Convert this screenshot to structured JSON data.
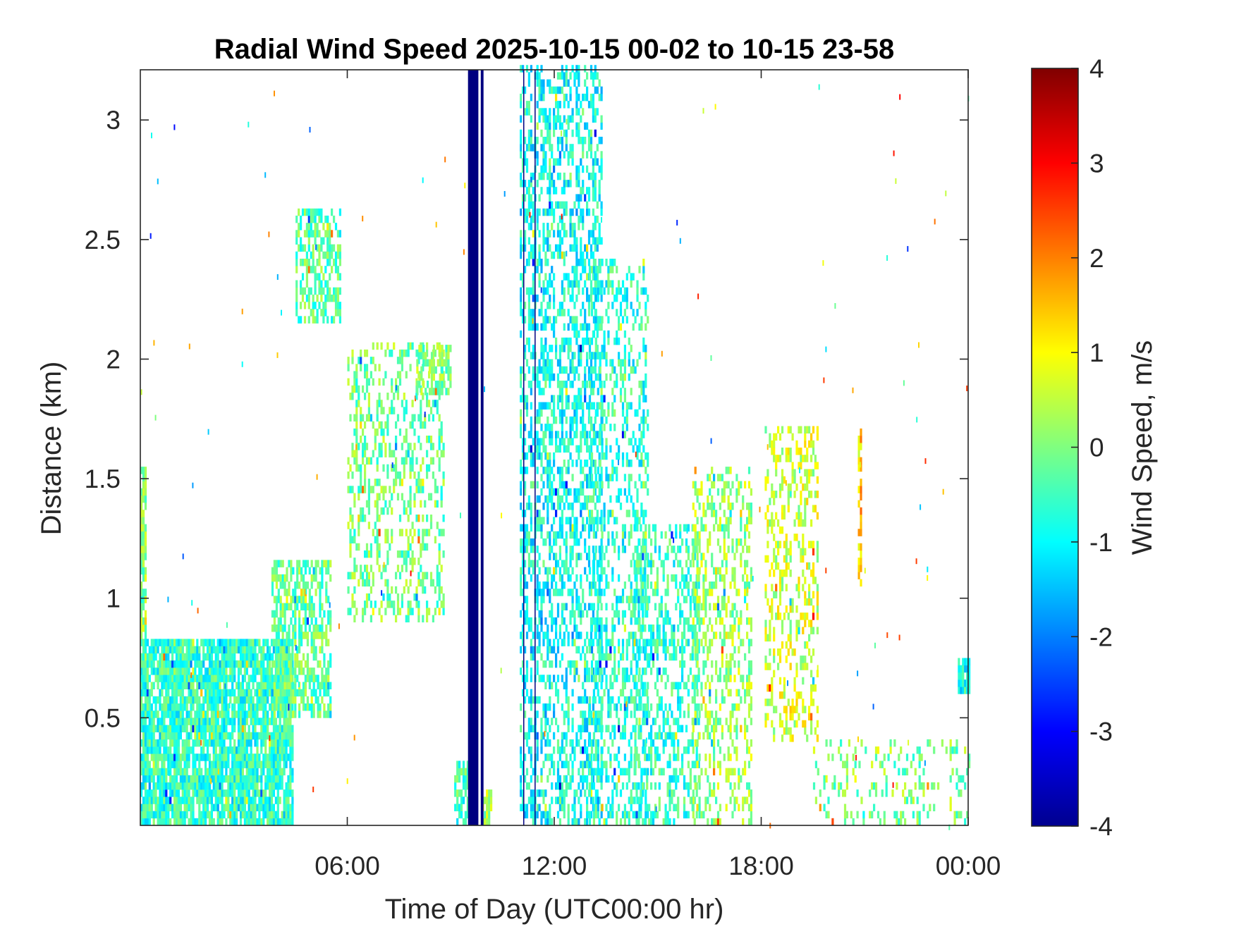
{
  "chart_data": {
    "type": "heatmap",
    "title": "Radial Wind Speed 2025-10-15 00-02 to 10-15 23-58",
    "xlabel": "Time of Day (UTC00:00 hr)",
    "ylabel": "Distance (km)",
    "colorbar_label": "Wind Speed, m/s",
    "colormap": "jet",
    "xlim_hours": [
      0,
      24
    ],
    "ylim_km": [
      0.05,
      3.21
    ],
    "clim": [
      -4,
      4
    ],
    "x_ticks": [
      {
        "value": 6,
        "label": "06:00"
      },
      {
        "value": 12,
        "label": "12:00"
      },
      {
        "value": 18,
        "label": "18:00"
      },
      {
        "value": 24,
        "label": "00:00"
      }
    ],
    "y_ticks": [
      {
        "value": 0.5,
        "label": "0.5"
      },
      {
        "value": 1,
        "label": "1"
      },
      {
        "value": 1.5,
        "label": "1.5"
      },
      {
        "value": 2,
        "label": "2"
      },
      {
        "value": 2.5,
        "label": "2.5"
      },
      {
        "value": 3,
        "label": "3"
      }
    ],
    "colorbar_ticks": [
      {
        "value": 4,
        "label": "4"
      },
      {
        "value": 3,
        "label": "3"
      },
      {
        "value": 2,
        "label": "2"
      },
      {
        "value": 1,
        "label": "1"
      },
      {
        "value": 0,
        "label": "0"
      },
      {
        "value": -1,
        "label": "-1"
      },
      {
        "value": -2,
        "label": "-2"
      },
      {
        "value": -3,
        "label": "-3"
      },
      {
        "value": -4,
        "label": "-4"
      }
    ],
    "grid": false,
    "regions": [
      {
        "t0": 0.0,
        "t1": 4.4,
        "d0": 0.05,
        "d1": 0.82,
        "v": -0.6,
        "density": 0.85
      },
      {
        "t0": 0.0,
        "t1": 0.15,
        "d0": 0.8,
        "d1": 1.55,
        "v": 0.1,
        "density": 0.8
      },
      {
        "t0": 3.8,
        "t1": 5.5,
        "d0": 0.5,
        "d1": 1.15,
        "v": -0.2,
        "density": 0.6
      },
      {
        "t0": 4.5,
        "t1": 5.8,
        "d0": 2.15,
        "d1": 2.6,
        "v": -0.3,
        "density": 0.55
      },
      {
        "t0": 6.0,
        "t1": 8.8,
        "d0": 0.9,
        "d1": 2.05,
        "v": -0.1,
        "density": 0.35
      },
      {
        "t0": 8.0,
        "t1": 9.0,
        "d0": 1.85,
        "d1": 2.05,
        "v": 0.0,
        "density": 0.6
      },
      {
        "t0": 9.1,
        "t1": 9.5,
        "d0": 0.05,
        "d1": 0.3,
        "v": -0.5,
        "density": 0.7
      },
      {
        "t0": 9.9,
        "t1": 10.2,
        "d0": 0.05,
        "d1": 0.2,
        "v": 0.2,
        "density": 0.6
      },
      {
        "t0": 11.0,
        "t1": 13.4,
        "d0": 0.05,
        "d1": 3.21,
        "v": -0.9,
        "density": 0.45
      },
      {
        "t0": 13.0,
        "t1": 14.7,
        "d0": 0.05,
        "d1": 2.4,
        "v": -0.7,
        "density": 0.35
      },
      {
        "t0": 14.3,
        "t1": 16.2,
        "d0": 0.05,
        "d1": 1.3,
        "v": -0.6,
        "density": 0.4
      },
      {
        "t0": 16.0,
        "t1": 17.7,
        "d0": 0.05,
        "d1": 1.55,
        "v": 0.2,
        "density": 0.35
      },
      {
        "t0": 18.1,
        "t1": 19.6,
        "d0": 0.4,
        "d1": 1.72,
        "v": 0.6,
        "density": 0.35
      },
      {
        "t0": 19.5,
        "t1": 24.0,
        "d0": 0.05,
        "d1": 0.4,
        "v": 0.0,
        "density": 0.18
      },
      {
        "t0": 20.8,
        "t1": 20.9,
        "d0": 1.05,
        "d1": 1.7,
        "v": 1.5,
        "density": 0.6
      },
      {
        "t0": 23.7,
        "t1": 24.0,
        "d0": 0.6,
        "d1": 0.75,
        "v": -0.8,
        "density": 0.7
      }
    ],
    "solid_bands": [
      {
        "t0": 9.5,
        "t1": 9.8,
        "v": -4
      },
      {
        "t0": 9.87,
        "t1": 9.95,
        "v": -4
      },
      {
        "t0": 11.1,
        "t1": 11.12,
        "v": -4
      },
      {
        "t0": 11.43,
        "t1": 11.45,
        "v": -4
      }
    ]
  }
}
